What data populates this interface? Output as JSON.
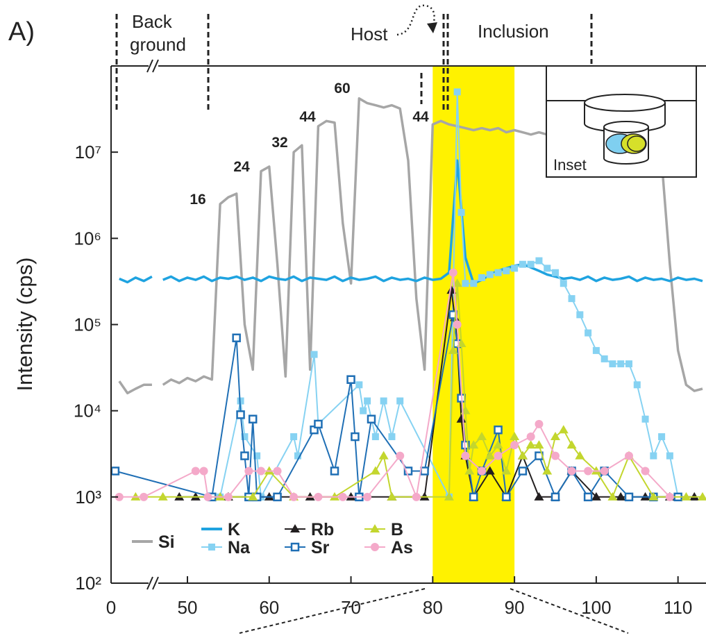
{
  "chart_data": {
    "type": "line",
    "log_y": true,
    "panel_label": "A)",
    "annotations": {
      "background": [
        "Back",
        "ground"
      ],
      "host": "Host",
      "inclusion": "Inclusion",
      "inset": "Inset"
    },
    "peak_labels": [
      "16",
      "24",
      "32",
      "44",
      "60",
      "44"
    ],
    "y_label": "Intensity (cps)",
    "xlim": [
      0,
      113
    ],
    "x_break": [
      5,
      46
    ],
    "xticks": [
      0,
      50,
      60,
      70,
      80,
      90,
      100,
      110
    ],
    "ylim": [
      100,
      100000000
    ],
    "yticks": [
      {
        "value": 100,
        "label": "10²"
      },
      {
        "value": 1000,
        "label": "10³"
      },
      {
        "value": 10000,
        "label": "10⁴"
      },
      {
        "value": 100000,
        "label": "10⁵"
      },
      {
        "value": 1000000,
        "label": "10⁶"
      },
      {
        "value": 10000000,
        "label": "10⁷"
      }
    ],
    "shaded_region": [
      80,
      90
    ],
    "shaded_color": "#fff200",
    "series": [
      {
        "name": "Si",
        "color": "#a6a6a6",
        "marker": "none",
        "x": [
          1,
          2,
          3,
          4,
          5,
          46,
          47,
          48,
          49,
          50,
          51,
          52,
          53,
          54,
          55,
          56,
          57,
          58,
          59,
          60,
          61,
          62,
          63,
          64,
          65,
          66,
          67,
          68,
          69,
          70,
          71,
          72,
          73,
          74,
          75,
          76,
          77,
          78,
          79,
          80,
          81,
          82,
          83,
          84,
          85,
          86,
          87,
          88,
          89,
          90,
          91,
          92,
          93,
          94,
          95,
          96,
          97,
          98,
          99,
          100,
          101,
          102,
          103,
          104,
          105,
          106,
          107,
          108,
          109,
          110,
          111,
          112,
          113
        ],
        "values": [
          22000,
          16000,
          18000,
          20000,
          20000,
          null,
          20000,
          23000,
          21000,
          24000,
          22000,
          25000,
          23000,
          2500000,
          3000000,
          3300000,
          100000,
          30000,
          6000000,
          6800000,
          500000,
          25000,
          10000000,
          12000000,
          30000,
          20000000,
          23000000,
          22000000,
          1500000,
          300000,
          42000000,
          37000000,
          35000000,
          33000000,
          35000000,
          32000000,
          8000000,
          200000,
          30000,
          21000000,
          23000000,
          21000000,
          20000000,
          19000000,
          18000000,
          19000000,
          18000000,
          19000000,
          17000000,
          18000000,
          17000000,
          16000000,
          17000000,
          16000000,
          17000000,
          15000000,
          16000000,
          17000000,
          15000000,
          16000000,
          15000000,
          16000000,
          15000000,
          16000000,
          15000000,
          15000000,
          14000000,
          8000000,
          500000,
          50000,
          20000,
          17000,
          18000
        ]
      },
      {
        "name": "K",
        "color": "#1fa3e0",
        "marker": "none",
        "x": [
          1,
          2,
          3,
          4,
          5,
          46,
          47,
          48,
          49,
          50,
          51,
          52,
          53,
          54,
          55,
          56,
          57,
          58,
          59,
          60,
          61,
          62,
          63,
          64,
          65,
          66,
          67,
          68,
          69,
          70,
          71,
          72,
          73,
          74,
          75,
          76,
          77,
          78,
          79,
          80,
          81,
          82,
          83,
          84,
          85,
          86,
          87,
          88,
          89,
          90,
          91,
          92,
          93,
          94,
          95,
          96,
          97,
          98,
          99,
          100,
          101,
          102,
          103,
          104,
          105,
          106,
          107,
          108,
          109,
          110,
          111,
          112,
          113
        ],
        "values": [
          340000,
          310000,
          350000,
          320000,
          360000,
          null,
          330000,
          360000,
          320000,
          350000,
          330000,
          360000,
          320000,
          350000,
          340000,
          360000,
          330000,
          350000,
          320000,
          360000,
          340000,
          330000,
          360000,
          320000,
          350000,
          340000,
          330000,
          360000,
          320000,
          350000,
          330000,
          340000,
          360000,
          320000,
          350000,
          330000,
          340000,
          320000,
          350000,
          330000,
          340000,
          400000,
          8000000,
          600000,
          300000,
          330000,
          380000,
          420000,
          450000,
          480000,
          500000,
          460000,
          420000,
          380000,
          360000,
          340000,
          350000,
          330000,
          360000,
          320000,
          350000,
          330000,
          340000,
          360000,
          320000,
          350000,
          330000,
          340000,
          320000,
          350000,
          330000,
          340000,
          320000
        ]
      },
      {
        "name": "Na",
        "color": "#86d2f2",
        "marker": "square",
        "x": [
          54,
          56.5,
          57,
          58.5,
          59,
          63,
          63.5,
          65.5,
          66,
          71,
          71.5,
          72,
          73,
          74,
          75,
          76,
          82,
          83,
          83.5,
          84,
          85,
          86,
          87,
          88,
          89,
          90,
          91,
          92,
          93,
          94,
          95,
          96,
          97,
          98,
          99,
          100,
          101,
          102,
          103,
          104,
          105,
          106,
          107,
          108,
          109,
          110
        ],
        "values": [
          1000,
          13000,
          5000,
          3000,
          1000,
          5000,
          3000,
          45000,
          7000,
          20000,
          10000,
          13000,
          5000,
          13000,
          5000,
          13000,
          1000,
          50000000,
          2000000,
          300000,
          300000,
          350000,
          380000,
          400000,
          420000,
          450000,
          500000,
          500000,
          550000,
          450000,
          400000,
          300000,
          200000,
          130000,
          80000,
          50000,
          40000,
          35000,
          35000,
          35000,
          20000,
          8000,
          3000,
          5000,
          3000,
          1000
        ]
      },
      {
        "name": "Rb",
        "color": "#231f20",
        "marker": "triangle",
        "x": [
          49,
          51,
          55,
          60,
          65,
          70,
          75,
          79,
          82.3,
          82.7,
          83,
          83.5,
          84,
          85,
          87,
          89,
          91,
          93,
          95,
          97,
          100,
          103,
          106,
          109,
          112
        ],
        "values": [
          1000,
          1000,
          1000,
          1000,
          1000,
          1000,
          1000,
          1000,
          250000,
          120000,
          60000,
          8000,
          3000,
          1000,
          2000,
          1000,
          3000,
          1000,
          1000,
          2000,
          1000,
          1000,
          1000,
          1000,
          1000
        ]
      },
      {
        "name": "Sr",
        "color": "#1f6fb5",
        "marker": "open-square",
        "x": [
          0.5,
          53,
          56,
          56.5,
          57,
          57.5,
          58,
          58.5,
          61,
          65.5,
          66,
          68,
          70,
          70.5,
          71,
          72.5,
          77,
          79,
          82.5,
          83,
          83.5,
          84,
          85,
          86,
          88,
          89,
          91,
          93,
          95,
          97,
          99,
          101,
          104,
          107,
          110
        ],
        "values": [
          2000,
          1000,
          70000,
          9000,
          3000,
          1000,
          8000,
          1000,
          1000,
          6000,
          7000,
          2000,
          23000,
          5000,
          1000,
          8000,
          2000,
          2000,
          130000,
          60000,
          14000,
          4000,
          1000,
          2000,
          6000,
          1000,
          2000,
          3000,
          1000,
          2000,
          1000,
          2000,
          1000,
          1000,
          1000
        ]
      },
      {
        "name": "B",
        "color": "#c3d62e",
        "marker": "triangle",
        "x": [
          3,
          47,
          54,
          58,
          60,
          63,
          68,
          73,
          74,
          75,
          82,
          82.5,
          83,
          83.5,
          84,
          84.5,
          85,
          86,
          87,
          88,
          89,
          90,
          91,
          92,
          93,
          94,
          95,
          96,
          97,
          98,
          100,
          102,
          104,
          107,
          111,
          113
        ],
        "values": [
          1000,
          1000,
          1000,
          1000,
          2000,
          1000,
          1000,
          2000,
          3000,
          1000,
          1000,
          50000,
          300000,
          60000,
          10000,
          2000,
          4000,
          5000,
          3000,
          4000,
          2000,
          5000,
          3000,
          4000,
          4000,
          2000,
          5000,
          6000,
          4000,
          3000,
          2000,
          1000,
          3000,
          1000,
          1000,
          1000
        ]
      },
      {
        "name": "As",
        "color": "#f4a9c9",
        "marker": "circle",
        "x": [
          1,
          4,
          51,
          52,
          52.5,
          55,
          57.5,
          59,
          61,
          63,
          66,
          69,
          72,
          76,
          78,
          82.5,
          83,
          84,
          86,
          88,
          90,
          92,
          93,
          95,
          97,
          99,
          101,
          104,
          106,
          109
        ],
        "values": [
          1000,
          1000,
          2000,
          2000,
          1000,
          1000,
          2000,
          2000,
          2000,
          1000,
          1000,
          1000,
          1000,
          3000,
          1000,
          400000,
          100000,
          3000,
          2000,
          3000,
          4000,
          5000,
          7000,
          3000,
          2000,
          2000,
          2000,
          3000,
          2000,
          1000
        ]
      }
    ]
  }
}
